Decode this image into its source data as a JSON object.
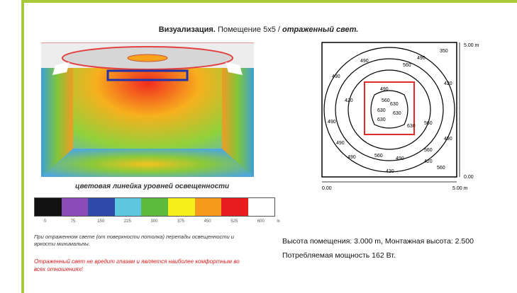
{
  "title": {
    "bold": "Визуализация.",
    "normal": "Помещение 5х5 /",
    "italic": "отраженный свет."
  },
  "scale": {
    "caption": "цветовая линейка уровней освещенности",
    "colors": [
      "#111111",
      "#8b4bb8",
      "#2e49a8",
      "#5ec8e0",
      "#5cba3c",
      "#f7ef1a",
      "#f59a1a",
      "#e81c1c",
      "#ffffff"
    ],
    "ticks": [
      "0",
      "75",
      "150",
      "225",
      "300",
      "375",
      "450",
      "525",
      "600",
      "lx"
    ]
  },
  "note": "При отраженном свете (от поверхности потолка) перепады освещенности и яркости минимальны.",
  "warning": "Отраженный свет не вредит глазам и является наиболее комфортным во всех отношениях!",
  "plan": {
    "dim_top": "5.00 m",
    "dim_right_bottom": "0.00",
    "dim_left_bottom": "0.00",
    "dim_bottom_right": "5.00 m",
    "labels": [
      "350",
      "420",
      "490",
      "560",
      "560",
      "490",
      "420",
      "490",
      "560",
      "630",
      "630",
      "630",
      "630",
      "630",
      "560",
      "490",
      "490",
      "560",
      "490",
      "420",
      "490",
      "560",
      "490",
      "430",
      "490"
    ]
  },
  "info": {
    "line1": "Высота помещения: 3.000 m, Монтажная высота: 2.500",
    "line2": "Потребляемая мощность 162 Вт."
  }
}
